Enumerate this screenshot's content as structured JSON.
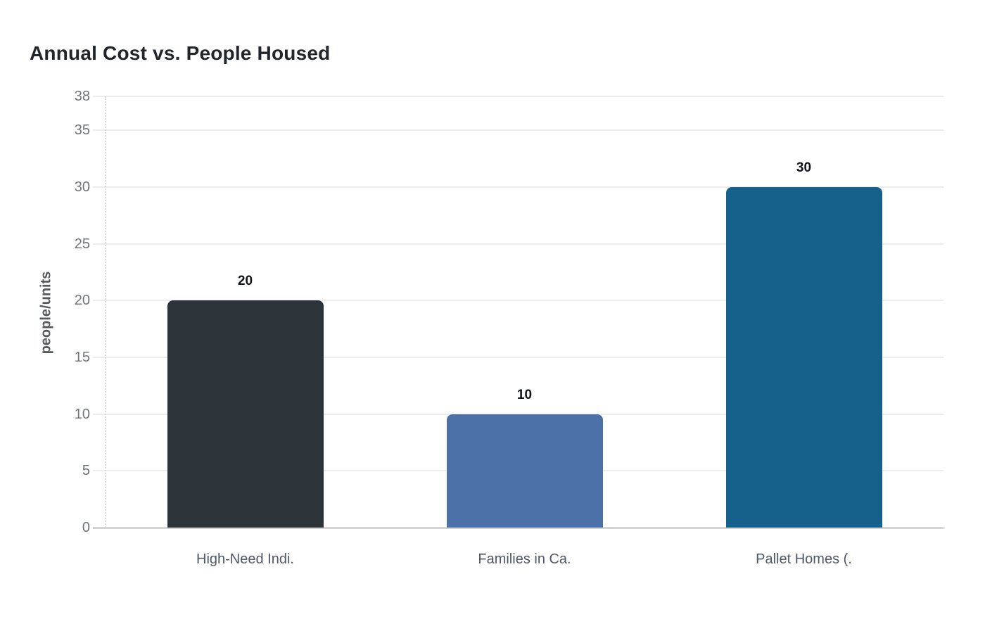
{
  "chart_data": {
    "type": "bar",
    "title": "Annual Cost vs. People Housed",
    "xlabel": "",
    "ylabel": "people/units",
    "categories": [
      "High-Need Indi.",
      "Families in Ca.",
      "Pallet Homes (."
    ],
    "values": [
      20,
      10,
      30
    ],
    "value_labels": [
      "20",
      "10",
      "30"
    ],
    "bar_colors": [
      "#2d3439",
      "#4c70a8",
      "#16618c"
    ],
    "yticks": [
      0,
      5,
      10,
      15,
      20,
      25,
      30,
      35,
      38
    ],
    "ylim": [
      0,
      38
    ],
    "grid": true,
    "legend": false
  },
  "colors": {
    "background": "#ffffff",
    "title_text": "#21262c",
    "tick_label_text": "#717579",
    "y_axis_title_text": "#55595e",
    "category_label_text": "#4e5864",
    "value_label_text": "#10131a",
    "gridline": "#ececec",
    "baseline": "#d4d4d4",
    "axis_dotted_line": "#d9d9d9"
  }
}
